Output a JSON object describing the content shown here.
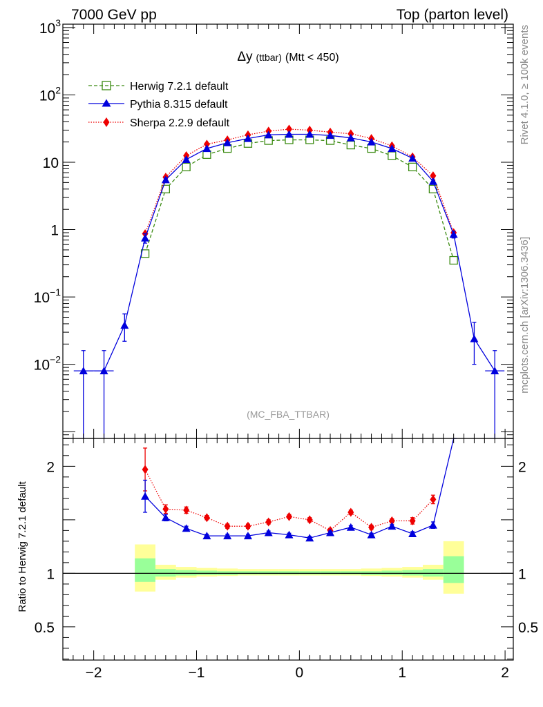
{
  "header": {
    "left_label": "7000 GeV pp",
    "right_label": "Top (parton level)"
  },
  "side_labels": {
    "rivet": "Rivet 4.1.0, ≥ 100k events",
    "mcplots": "mcplots.cern.ch [arXiv:1306.3436]"
  },
  "colors": {
    "herwig": "#3a8a10",
    "pythia": "#0000dd",
    "sherpa": "#ee0000",
    "band_outer": "#ffff99",
    "band_inner": "#99ff99"
  },
  "chart_data": [
    {
      "type": "line",
      "title": "Δy",
      "title_sub": "(ttbar)",
      "title_cond": "(Mtt < 450)",
      "analysis_label": "(MC_FBA_TTBAR)",
      "xlim": [
        -2.3,
        2.08
      ],
      "ylim_log10": [
        -3.1,
        3.05
      ],
      "yscale": "log",
      "ytick_labels": [
        {
          "v": 3,
          "base": "10",
          "exp": "3"
        },
        {
          "v": 2,
          "base": "10",
          "exp": "2"
        },
        {
          "v": 1,
          "base": "10",
          "exp": ""
        },
        {
          "v": 0,
          "base": "1",
          "exp": ""
        },
        {
          "v": -1,
          "base": "10",
          "exp": "−1"
        },
        {
          "v": -2,
          "base": "10",
          "exp": "−2"
        }
      ],
      "legend": [
        {
          "key": "herwig",
          "label": "Herwig 7.2.1 default"
        },
        {
          "key": "pythia",
          "label": "Pythia 8.315 default"
        },
        {
          "key": "sherpa",
          "label": "Sherpa 2.2.9 default"
        }
      ],
      "series": [
        {
          "name": "Herwig 7.2.1 default",
          "key": "herwig",
          "x": [
            -1.5,
            -1.3,
            -1.1,
            -0.9,
            -0.7,
            -0.5,
            -0.3,
            -0.1,
            0.1,
            0.3,
            0.5,
            0.7,
            0.9,
            1.1,
            1.3,
            1.5
          ],
          "y": [
            0.44,
            4.0,
            8.5,
            13.0,
            16.0,
            19.0,
            21.0,
            21.5,
            21.5,
            21.0,
            18.0,
            16.0,
            12.5,
            8.5,
            4.0,
            0.35
          ]
        },
        {
          "name": "Pythia 8.315 default",
          "key": "pythia",
          "x": [
            -2.1,
            -1.9,
            -1.7,
            -1.5,
            -1.3,
            -1.1,
            -0.9,
            -0.7,
            -0.5,
            -0.3,
            -0.1,
            0.1,
            0.3,
            0.5,
            0.7,
            0.9,
            1.1,
            1.3,
            1.5,
            1.7,
            1.9
          ],
          "y": [
            0.008,
            0.008,
            0.038,
            0.75,
            5.5,
            11.0,
            16.0,
            19.5,
            22.5,
            25.5,
            26.0,
            26.0,
            25.0,
            23.0,
            20.0,
            16.0,
            11.5,
            5.2,
            0.85,
            0.024,
            0.008
          ],
          "err_lo": [
            0.008,
            0.008,
            0.016,
            0.12,
            0.3,
            0.4,
            0.4,
            0.4,
            0.4,
            0.4,
            0.4,
            0.4,
            0.4,
            0.4,
            0.4,
            0.4,
            0.4,
            0.3,
            0.1,
            0.014,
            0.008
          ],
          "err_hi": [
            0.008,
            0.008,
            0.018,
            0.12,
            0.3,
            0.4,
            0.4,
            0.4,
            0.4,
            0.4,
            0.4,
            0.4,
            0.4,
            0.4,
            0.4,
            0.4,
            0.4,
            0.3,
            0.1,
            0.018,
            0.008
          ]
        },
        {
          "name": "Sherpa 2.2.9 default",
          "key": "sherpa",
          "x": [
            -1.5,
            -1.3,
            -1.1,
            -0.9,
            -0.7,
            -0.5,
            -0.3,
            -0.1,
            0.1,
            0.3,
            0.5,
            0.7,
            0.9,
            1.1,
            1.3,
            1.5
          ],
          "y": [
            0.87,
            6.0,
            12.5,
            18.5,
            21.5,
            25.5,
            29.0,
            31.0,
            30.0,
            28.0,
            26.5,
            22.5,
            17.5,
            12.0,
            6.3,
            0.9
          ]
        }
      ]
    },
    {
      "type": "line",
      "ylabel": "Ratio to Herwig 7.2.1 default",
      "xlim": [
        -2.3,
        2.08
      ],
      "ylim": [
        0.19,
        2.26
      ],
      "ytick_labels": [
        {
          "v": 2,
          "label": "2"
        },
        {
          "v": 1,
          "label": "1"
        },
        {
          "v": 0.5,
          "label": "0.5"
        }
      ],
      "xtick_labels": [
        {
          "v": -2,
          "label": "−2"
        },
        {
          "v": -1,
          "label": "−1"
        },
        {
          "v": 0,
          "label": "0"
        },
        {
          "v": 1,
          "label": "1"
        },
        {
          "v": 2,
          "label": "2"
        }
      ],
      "reference_line": 1,
      "band_edges": [
        -1.6,
        -1.4,
        -1.2,
        -1.0,
        -0.8,
        -0.6,
        -0.4,
        -0.2,
        0.0,
        0.2,
        0.4,
        0.6,
        0.8,
        1.0,
        1.2,
        1.4,
        1.6
      ],
      "band_outer": [
        [
          0.83,
          1.27
        ],
        [
          0.94,
          1.08
        ],
        [
          0.96,
          1.06
        ],
        [
          0.97,
          1.05
        ],
        [
          0.975,
          1.045
        ],
        [
          0.98,
          1.04
        ],
        [
          0.98,
          1.04
        ],
        [
          0.98,
          1.04
        ],
        [
          0.98,
          1.04
        ],
        [
          0.98,
          1.04
        ],
        [
          0.98,
          1.04
        ],
        [
          0.975,
          1.045
        ],
        [
          0.97,
          1.05
        ],
        [
          0.96,
          1.06
        ],
        [
          0.94,
          1.08
        ],
        [
          0.81,
          1.3
        ]
      ],
      "band_inner": [
        [
          0.92,
          1.14
        ],
        [
          0.97,
          1.04
        ],
        [
          0.98,
          1.03
        ],
        [
          0.985,
          1.025
        ],
        [
          0.985,
          1.02
        ],
        [
          0.99,
          1.02
        ],
        [
          0.99,
          1.02
        ],
        [
          0.99,
          1.02
        ],
        [
          0.99,
          1.02
        ],
        [
          0.99,
          1.02
        ],
        [
          0.99,
          1.02
        ],
        [
          0.985,
          1.02
        ],
        [
          0.985,
          1.025
        ],
        [
          0.98,
          1.03
        ],
        [
          0.97,
          1.04
        ],
        [
          0.91,
          1.16
        ]
      ],
      "series": [
        {
          "name": "Pythia 8.315 default",
          "key": "pythia",
          "x": [
            -1.5,
            -1.3,
            -1.1,
            -0.9,
            -0.7,
            -0.5,
            -0.3,
            -0.1,
            0.1,
            0.3,
            0.5,
            0.7,
            0.9,
            1.1,
            1.3,
            1.5,
            1.53
          ],
          "y": [
            1.72,
            1.52,
            1.42,
            1.35,
            1.35,
            1.35,
            1.38,
            1.36,
            1.33,
            1.38,
            1.43,
            1.36,
            1.44,
            1.37,
            1.45,
            2.26,
            2.26
          ],
          "err": [
            0.15,
            0.03,
            0.02,
            0.015,
            0.015,
            0.015,
            0.015,
            0.015,
            0.015,
            0.015,
            0.015,
            0.015,
            0.015,
            0.02,
            0.03,
            0.0,
            0.0
          ]
        },
        {
          "name": "Sherpa 2.2.9 default",
          "key": "sherpa",
          "x": [
            -1.5,
            -1.3,
            -1.1,
            -0.9,
            -0.7,
            -0.5,
            -0.3,
            -0.1,
            0.1,
            0.3,
            0.5,
            0.7,
            0.9,
            1.1,
            1.3
          ],
          "y": [
            1.97,
            1.6,
            1.59,
            1.52,
            1.44,
            1.44,
            1.48,
            1.53,
            1.5,
            1.4,
            1.57,
            1.43,
            1.49,
            1.49,
            1.69
          ],
          "err": [
            0.2,
            0.04,
            0.03,
            0.02,
            0.02,
            0.02,
            0.02,
            0.02,
            0.02,
            0.02,
            0.02,
            0.02,
            0.02,
            0.03,
            0.04
          ]
        }
      ]
    }
  ]
}
